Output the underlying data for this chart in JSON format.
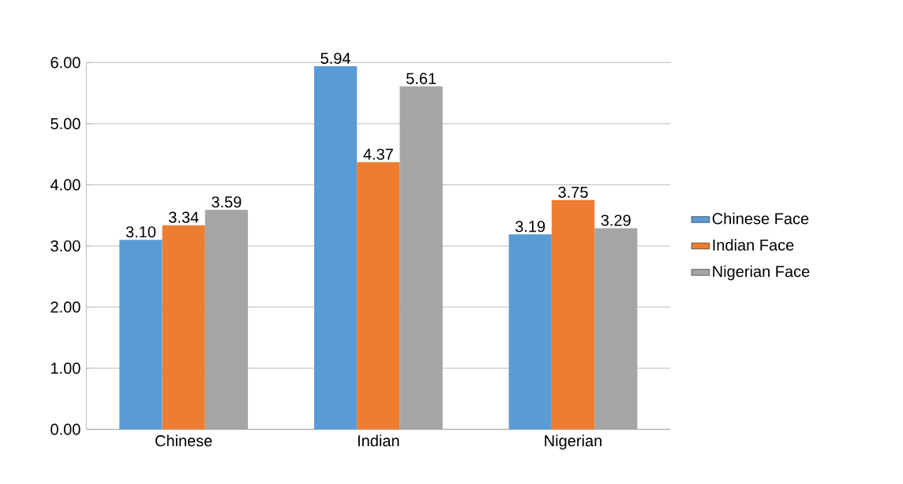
{
  "chart_data": {
    "type": "bar",
    "categories": [
      "Chinese",
      "Indian",
      "Nigerian"
    ],
    "series": [
      {
        "name": "Chinese Face",
        "color": "#5b9bd5",
        "values": [
          3.1,
          5.94,
          3.19
        ],
        "value_labels": [
          "3.10",
          "5.94",
          "3.19"
        ]
      },
      {
        "name": "Indian Face",
        "color": "#ed7d31",
        "values": [
          3.34,
          4.37,
          3.75
        ],
        "value_labels": [
          "3.34",
          "4.37",
          "3.75"
        ]
      },
      {
        "name": "Nigerian Face",
        "color": "#a5a5a5",
        "values": [
          3.59,
          5.61,
          3.29
        ],
        "value_labels": [
          "3.59",
          "5.61",
          "3.29"
        ]
      }
    ],
    "ylim": [
      0,
      6
    ],
    "yticks": [
      {
        "value": 0,
        "label": "0.00"
      },
      {
        "value": 1,
        "label": "1.00"
      },
      {
        "value": 2,
        "label": "2.00"
      },
      {
        "value": 3,
        "label": "3.00"
      },
      {
        "value": 4,
        "label": "4.00"
      },
      {
        "value": 5,
        "label": "5.00"
      },
      {
        "value": 6,
        "label": "6.00"
      }
    ],
    "grid": "y",
    "legend": "right"
  }
}
